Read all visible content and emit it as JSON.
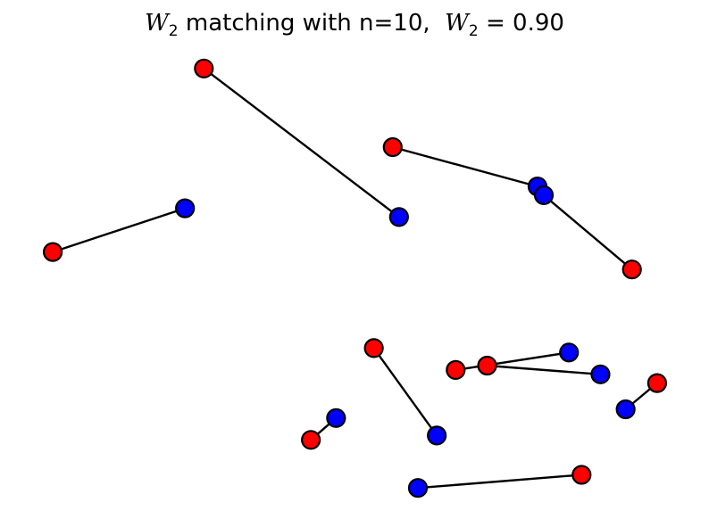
{
  "chart_data": {
    "type": "scatter",
    "title": {
      "w_symbol": "W",
      "w_subscript": "2",
      "middle_text": " matching with n=10,  ",
      "equals_text": " = 0.90"
    },
    "n": 10,
    "w2": 0.9,
    "colors": {
      "red": "#ff0000",
      "blue": "#0000ff",
      "line": "#000000"
    },
    "xlim": [
      0,
      1
    ],
    "ylim": [
      0,
      1
    ],
    "axes_visible": false,
    "grid": false,
    "pairs": [
      {
        "red": [
          0.26,
          0.98
        ],
        "blue": [
          0.57,
          0.64
        ]
      },
      {
        "red": [
          0.56,
          0.8
        ],
        "blue": [
          0.79,
          0.71
        ]
      },
      {
        "red": [
          0.02,
          0.56
        ],
        "blue": [
          0.23,
          0.66
        ]
      },
      {
        "red": [
          0.94,
          0.52
        ],
        "blue": [
          0.8,
          0.69
        ]
      },
      {
        "red": [
          0.53,
          0.34
        ],
        "blue": [
          0.63,
          0.14
        ]
      },
      {
        "red": [
          0.66,
          0.29
        ],
        "blue": [
          0.84,
          0.33
        ]
      },
      {
        "red": [
          0.71,
          0.3
        ],
        "blue": [
          0.89,
          0.28
        ]
      },
      {
        "red": [
          0.98,
          0.26
        ],
        "blue": [
          0.93,
          0.2
        ]
      },
      {
        "red": [
          0.43,
          0.13
        ],
        "blue": [
          0.47,
          0.18
        ]
      },
      {
        "red": [
          0.86,
          0.05
        ],
        "blue": [
          0.6,
          0.02
        ]
      }
    ]
  }
}
